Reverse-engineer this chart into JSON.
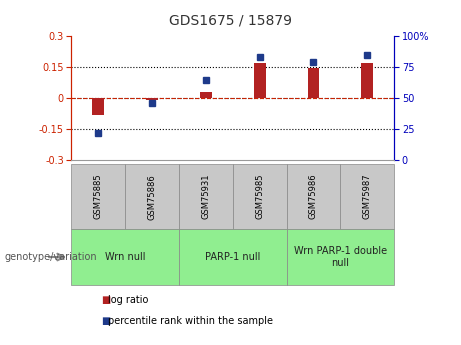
{
  "title": "GDS1675 / 15879",
  "samples": [
    "GSM75885",
    "GSM75886",
    "GSM75931",
    "GSM75985",
    "GSM75986",
    "GSM75987"
  ],
  "log_ratio": [
    -0.08,
    -0.01,
    0.03,
    0.17,
    0.145,
    0.17
  ],
  "percentile": [
    22,
    46,
    65,
    83,
    79,
    85
  ],
  "ylim_left": [
    -0.3,
    0.3
  ],
  "ylim_right": [
    0,
    100
  ],
  "yticks_left": [
    -0.3,
    -0.15,
    0.0,
    0.15,
    0.3
  ],
  "yticks_right": [
    0,
    25,
    50,
    75,
    100
  ],
  "dotted_lines": [
    -0.15,
    0.0,
    0.15
  ],
  "bar_color": "#B22222",
  "square_color": "#1E3A8A",
  "group_defs": [
    {
      "label": "Wrn null",
      "start": 0,
      "end": 2,
      "color": "#90EE90"
    },
    {
      "label": "PARP-1 null",
      "start": 2,
      "end": 4,
      "color": "#90EE90"
    },
    {
      "label": "Wrn PARP-1 double\nnull",
      "start": 4,
      "end": 6,
      "color": "#90EE90"
    }
  ],
  "legend_red_label": "log ratio",
  "legend_blue_label": "percentile rank within the sample",
  "genotype_label": "genotype/variation",
  "left_axis_color": "#CC2200",
  "right_axis_color": "#0000BB",
  "sample_box_color": "#C8C8C8",
  "title_fontsize": 10,
  "tick_fontsize": 7,
  "sample_fontsize": 6,
  "group_fontsize": 7,
  "legend_fontsize": 7,
  "genotype_fontsize": 7
}
